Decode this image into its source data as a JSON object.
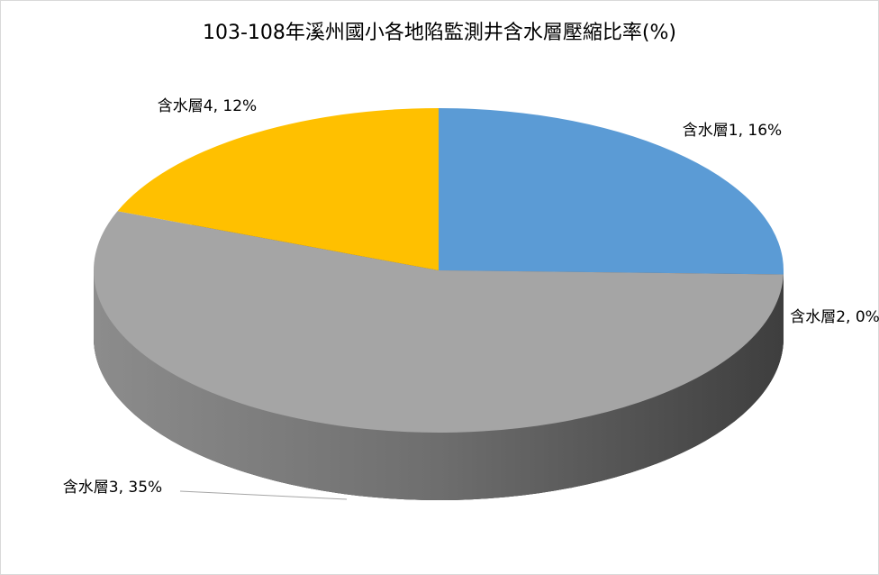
{
  "chart_data": {
    "type": "pie",
    "title": "103-108年溪州國小各地陷監測井含水層壓縮比率(%)",
    "values": [
      16,
      0,
      35,
      12
    ],
    "value_labels": [
      "含水層1, 16%",
      "含水層2, 0%",
      "含水層3, 35%",
      "含水層4, 12%"
    ],
    "colors": [
      "#5b9bd5",
      "#ed7d31",
      "#a5a5a5",
      "#ffc000"
    ]
  }
}
